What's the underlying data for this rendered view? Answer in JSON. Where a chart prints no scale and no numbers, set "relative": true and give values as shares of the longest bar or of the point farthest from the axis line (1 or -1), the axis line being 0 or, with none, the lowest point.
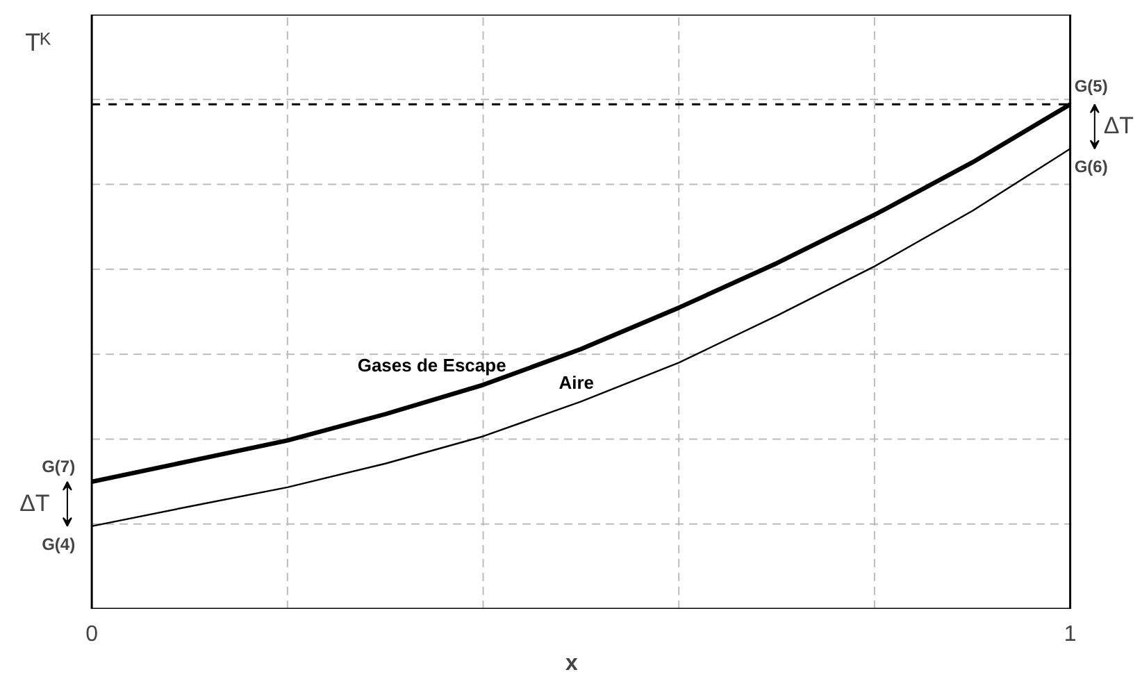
{
  "chart_data": {
    "type": "line",
    "relative": true,
    "xlabel": "x",
    "ylabel": "Tᴷ",
    "x": [
      0,
      0.1,
      0.2,
      0.3,
      0.4,
      0.5,
      0.6,
      0.7,
      0.8,
      0.9,
      1
    ],
    "xlim": [
      0,
      1
    ],
    "xticks": [
      0,
      {
        "value": 0.2,
        "label": null
      },
      {
        "value": 0.4,
        "label": null
      },
      {
        "value": 0.6,
        "label": null
      },
      {
        "value": 0.8,
        "label": null
      },
      1
    ],
    "grid": true,
    "legend": false,
    "marker": "none",
    "line_style": "solid",
    "series": [
      {
        "name": "Gases de Escape",
        "color": "#000000",
        "values": [
          0.252,
          0.293,
          0.334,
          0.386,
          0.444,
          0.515,
          0.597,
          0.685,
          0.781,
          0.885,
          1
        ]
      },
      {
        "name": "Aire",
        "color": "#000000",
        "values": [
          0.164,
          0.203,
          0.241,
          0.288,
          0.342,
          0.411,
          0.488,
          0.581,
          0.679,
          0.789,
          0.912
        ]
      }
    ],
    "ref_lines": [
      {
        "axis": "y",
        "value": 1,
        "label": null,
        "line_style": "dashed",
        "color": "#000000"
      }
    ],
    "annotations": [
      "G(5)",
      "G(6)",
      "G(7)",
      "G(4)",
      "ΔT",
      "ΔT"
    ]
  }
}
